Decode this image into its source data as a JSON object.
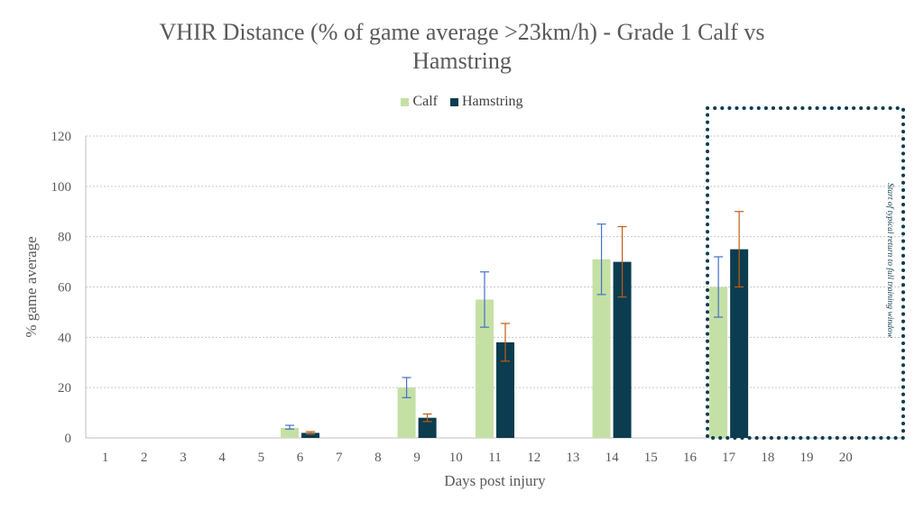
{
  "chart_data": {
    "type": "bar",
    "title": [
      "VHIR Distance (% of game average >23km/h) - Grade 1 Calf vs",
      "Hamstring"
    ],
    "xlabel": "Days post injury",
    "ylabel": "% game average",
    "ylim": [
      0,
      120
    ],
    "yticks": [
      0,
      20,
      40,
      60,
      80,
      100,
      120
    ],
    "grid": true,
    "legend_position": "top",
    "categories": [
      "1",
      "2",
      "3",
      "4",
      "5",
      "6",
      "7",
      "8",
      "9",
      "10",
      "11",
      "12",
      "13",
      "14",
      "15",
      "16",
      "17",
      "18",
      "19",
      "20"
    ],
    "series": [
      {
        "name": "Calf",
        "color": "#c5e0a5",
        "error_color": "#4472c4",
        "values": [
          null,
          null,
          null,
          null,
          null,
          4,
          null,
          null,
          20,
          null,
          55,
          null,
          null,
          71,
          null,
          null,
          60,
          null,
          null,
          null
        ],
        "err_low": [
          null,
          null,
          null,
          null,
          null,
          3.5,
          null,
          null,
          16,
          null,
          44,
          null,
          null,
          57,
          null,
          null,
          48,
          null,
          null,
          null
        ],
        "err_high": [
          null,
          null,
          null,
          null,
          null,
          5,
          null,
          null,
          24,
          null,
          66,
          null,
          null,
          85,
          null,
          null,
          72,
          null,
          null,
          null
        ]
      },
      {
        "name": "Hamstring",
        "color": "#0b3c4f",
        "error_color": "#c55a11",
        "values": [
          null,
          null,
          null,
          null,
          null,
          2,
          null,
          null,
          8,
          null,
          38,
          null,
          null,
          70,
          null,
          null,
          75,
          null,
          null,
          null
        ],
        "err_low": [
          null,
          null,
          null,
          null,
          null,
          1.5,
          null,
          null,
          6.5,
          null,
          30.5,
          null,
          null,
          56,
          null,
          null,
          60,
          null,
          null,
          null
        ],
        "err_high": [
          null,
          null,
          null,
          null,
          null,
          2.5,
          null,
          null,
          9.5,
          null,
          45.5,
          null,
          null,
          84,
          null,
          null,
          90,
          null,
          null,
          null
        ]
      }
    ],
    "annotation": {
      "text": "Start of typical return to full training window",
      "spans_categories": [
        "17",
        "20"
      ],
      "style": "dotted-box"
    }
  }
}
